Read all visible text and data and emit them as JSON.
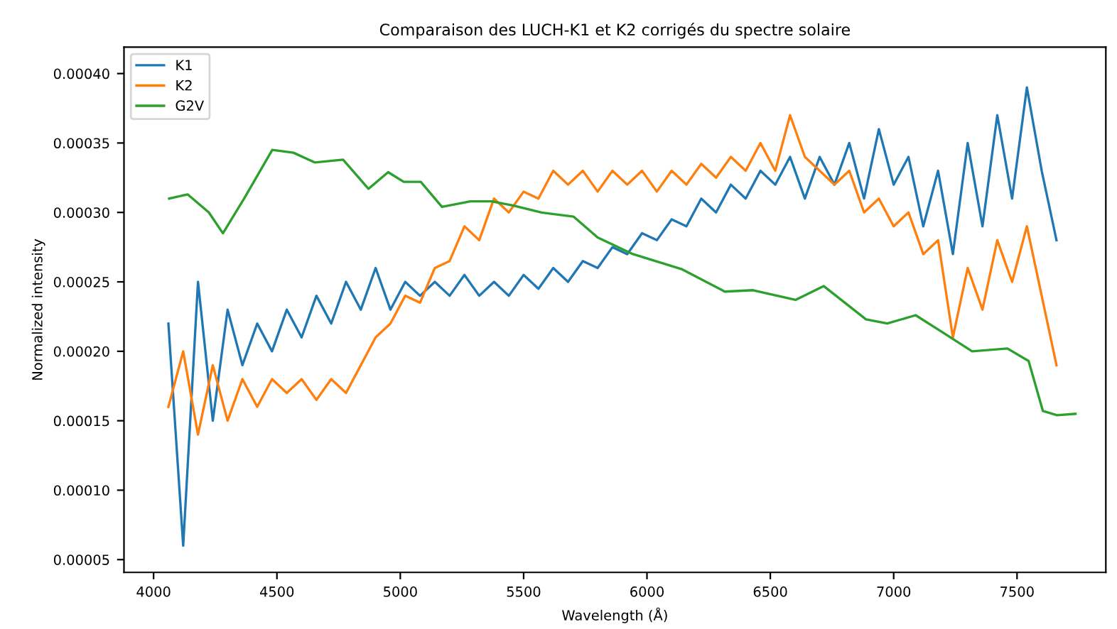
{
  "chart_data": {
    "type": "line",
    "title": "Comparaison des LUCH-K1 et K2 corrigés du spectre solaire",
    "xlabel": "Wavelength (Å)",
    "ylabel": "Normalized intensity",
    "xlim": [
      3880,
      7860
    ],
    "xticks": [
      4000,
      4500,
      5000,
      5500,
      6000,
      6500,
      7000,
      7500
    ],
    "ylim": [
      4.08e-05,
      0.000419
    ],
    "yticks": [
      {
        "value": 5e-05,
        "label": "0.00005"
      },
      {
        "value": 0.0001,
        "label": "0.00010"
      },
      {
        "value": 0.00015,
        "label": "0.00015"
      },
      {
        "value": 0.0002,
        "label": "0.00020"
      },
      {
        "value": 0.00025,
        "label": "0.00025"
      },
      {
        "value": 0.0003,
        "label": "0.00030"
      },
      {
        "value": 0.00035,
        "label": "0.00035"
      },
      {
        "value": 0.0004,
        "label": "0.00040"
      }
    ],
    "grid": false,
    "legend": "top left",
    "marker": "none",
    "line_style": "solid",
    "x": [
      4060,
      4120,
      4180,
      4240,
      4300,
      4360,
      4420,
      4480,
      4540,
      4600,
      4660,
      4720,
      4780,
      4840,
      4900,
      4960,
      5020,
      5080,
      5140,
      5200,
      5260,
      5320,
      5380,
      5440,
      5500,
      5560,
      5620,
      5680,
      5740,
      5800,
      5860,
      5920,
      5980,
      6040,
      6100,
      6160,
      6220,
      6280,
      6340,
      6400,
      6460,
      6520,
      6580,
      6640,
      6700,
      6760,
      6820,
      6880,
      6940,
      7000,
      7060,
      7120,
      7180,
      7240,
      7300,
      7360,
      7420,
      7480,
      7540,
      7600,
      7660
    ],
    "series": [
      {
        "name": "K1",
        "color": "#1f77b4",
        "values": [
          0.00022,
          6e-05,
          0.00025,
          0.00015,
          0.00023,
          0.00019,
          0.00022,
          0.0002,
          0.00023,
          0.00021,
          0.00024,
          0.00022,
          0.00025,
          0.00023,
          0.00026,
          0.00023,
          0.00025,
          0.00024,
          0.00025,
          0.00024,
          0.000255,
          0.00024,
          0.00025,
          0.00024,
          0.000255,
          0.000245,
          0.00026,
          0.00025,
          0.000265,
          0.00026,
          0.000275,
          0.00027,
          0.000285,
          0.00028,
          0.000295,
          0.00029,
          0.00031,
          0.0003,
          0.00032,
          0.00031,
          0.00033,
          0.00032,
          0.00034,
          0.00031,
          0.00034,
          0.00032,
          0.00035,
          0.00031,
          0.00036,
          0.00032,
          0.00034,
          0.00029,
          0.00033,
          0.00027,
          0.00035,
          0.00029,
          0.00037,
          0.00031,
          0.00039,
          0.00033,
          0.00028
        ]
      },
      {
        "name": "K2",
        "color": "#ff7f0e",
        "values": [
          0.00016,
          0.0002,
          0.00014,
          0.00019,
          0.00015,
          0.00018,
          0.00016,
          0.00018,
          0.00017,
          0.00018,
          0.000165,
          0.00018,
          0.00017,
          0.00019,
          0.00021,
          0.00022,
          0.00024,
          0.000235,
          0.00026,
          0.000265,
          0.00029,
          0.00028,
          0.00031,
          0.0003,
          0.000315,
          0.00031,
          0.00033,
          0.00032,
          0.00033,
          0.000315,
          0.00033,
          0.00032,
          0.00033,
          0.000315,
          0.00033,
          0.00032,
          0.000335,
          0.000325,
          0.00034,
          0.00033,
          0.00035,
          0.00033,
          0.00037,
          0.00034,
          0.00033,
          0.00032,
          0.00033,
          0.0003,
          0.00031,
          0.00029,
          0.0003,
          0.00027,
          0.00028,
          0.00021,
          0.00026,
          0.00023,
          0.00028,
          0.00025,
          0.00029,
          0.00024,
          0.00019
        ]
      },
      {
        "name": "G2V",
        "color": "#2ca02c",
        "x": [
          4063,
          4138,
          4224,
          4281,
          4367,
          4481,
          4567,
          4653,
          4768,
          4871,
          4951,
          5014,
          5083,
          5169,
          5284,
          5370,
          5456,
          5570,
          5702,
          5800,
          5943,
          6143,
          6315,
          6430,
          6602,
          6716,
          6888,
          6974,
          7089,
          7204,
          7318,
          7461,
          7547,
          7605,
          7662,
          7737
        ],
        "values": [
          0.00031,
          0.000313,
          0.0003,
          0.000285,
          0.00031,
          0.000345,
          0.000343,
          0.000336,
          0.000338,
          0.000317,
          0.000329,
          0.000322,
          0.000322,
          0.000304,
          0.000308,
          0.000308,
          0.000305,
          0.0003,
          0.000297,
          0.000282,
          0.00027,
          0.000259,
          0.000243,
          0.000244,
          0.000237,
          0.000247,
          0.000223,
          0.00022,
          0.000226,
          0.000213,
          0.0002,
          0.000202,
          0.000193,
          0.000157,
          0.000154,
          0.000155
        ]
      }
    ]
  }
}
